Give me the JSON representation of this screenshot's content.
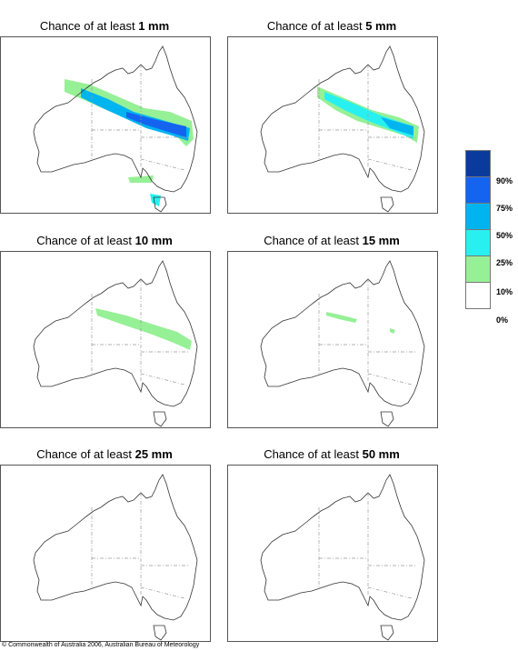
{
  "title_prefix": "Chance of at least ",
  "panels": [
    {
      "amount": "1 mm"
    },
    {
      "amount": "5 mm"
    },
    {
      "amount": "10 mm"
    },
    {
      "amount": "15 mm"
    },
    {
      "amount": "25 mm"
    },
    {
      "amount": "50 mm"
    }
  ],
  "legend": {
    "swatches": [
      {
        "color": "#0a3a9c"
      },
      {
        "color": "#1464f0"
      },
      {
        "color": "#00b4f0"
      },
      {
        "color": "#28f0f0"
      },
      {
        "color": "#96f096"
      },
      {
        "color": "#ffffff"
      }
    ],
    "labels": [
      "90%",
      "75%",
      "50%",
      "25%",
      "10%",
      "0%"
    ]
  },
  "copyright": "© Commonwealth of Australia 2006, Australian Bureau of Meteorology"
}
